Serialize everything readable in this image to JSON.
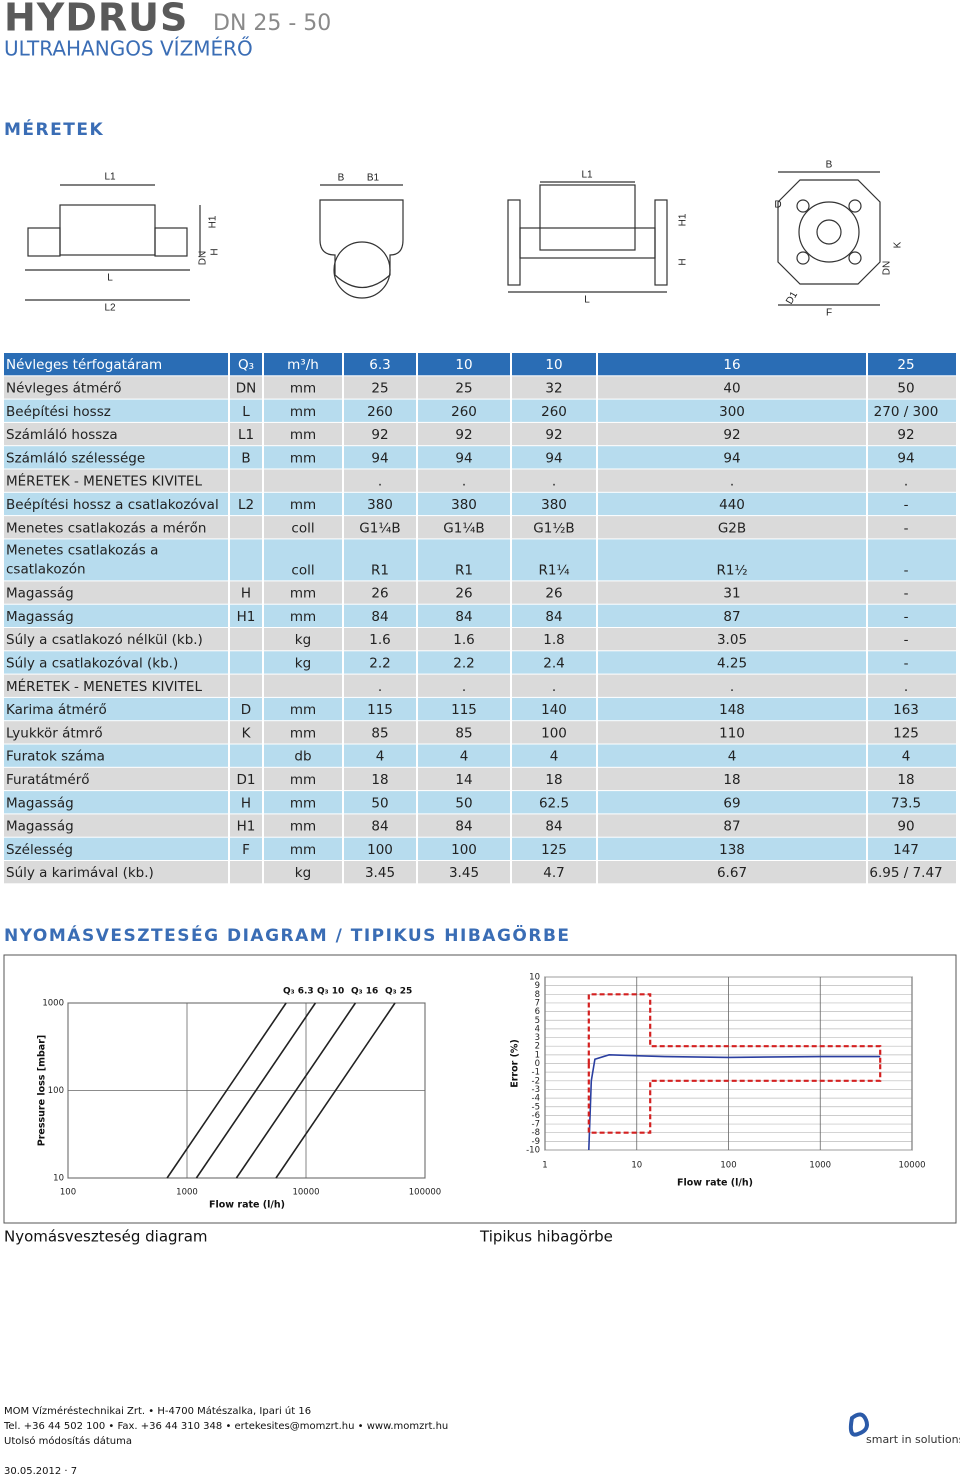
{
  "header": {
    "brand": "HYDRUS",
    "model": "DN 25 - 50",
    "subtitle": "ULTRAHANGOS VÍZMÉRŐ"
  },
  "dimensions": {
    "title": "MÉRETEK",
    "drawing_labels": {
      "meter_side": [
        "L1",
        "H1",
        "DN",
        "H",
        "L",
        "L2"
      ],
      "meter_end": [
        "B",
        "B1"
      ],
      "flanged_side": [
        "L1",
        "H1",
        "H",
        "L"
      ],
      "flange_face": [
        "B",
        "D",
        "K",
        "DN",
        "D1",
        "F"
      ]
    },
    "table": {
      "rows": [
        [
          "Névleges térfogatáram",
          "Q₃",
          "m³/h",
          "6.3",
          "10",
          "10",
          "16",
          "25"
        ],
        [
          "Névleges átmérő",
          "DN",
          "mm",
          "25",
          "25",
          "32",
          "40",
          "50"
        ],
        [
          "Beépítési hossz",
          "L",
          "mm",
          "260",
          "260",
          "260",
          "300",
          "270 / 300"
        ],
        [
          "Számláló hossza",
          "L1",
          "mm",
          "92",
          "92",
          "92",
          "92",
          "92"
        ],
        [
          "Számláló szélessége",
          "B",
          "mm",
          "94",
          "94",
          "94",
          "94",
          "94"
        ],
        [
          "MÉRETEK - MENETES KIVITEL",
          null,
          null,
          ".",
          ".",
          ".",
          ".",
          "."
        ],
        [
          "Beépítési hossz a csatlakozóval",
          "L2",
          "mm",
          "380",
          "380",
          "380",
          "440",
          "-"
        ],
        [
          "Menetes csatlakozás a mérőn",
          null,
          "coll",
          "G1¼B",
          "G1¼B",
          "G1½B",
          "G2B",
          "-"
        ],
        [
          "Menetes csatlakozás a csatlakozón",
          null,
          "coll",
          "R1",
          "R1",
          "R1¼",
          "R1½",
          "-"
        ],
        [
          "Magasság",
          "H",
          "mm",
          "26",
          "26",
          "26",
          "31",
          "-"
        ],
        [
          "Magasság",
          "H1",
          "mm",
          "84",
          "84",
          "84",
          "87",
          "-"
        ],
        [
          "Súly a csatlakozó nélkül (kb.)",
          null,
          "kg",
          "1.6",
          "1.6",
          "1.8",
          "3.05",
          "-"
        ],
        [
          "Súly a csatlakozóval (kb.)",
          null,
          "kg",
          "2.2",
          "2.2",
          "2.4",
          "4.25",
          "-"
        ],
        [
          "MÉRETEK - MENETES KIVITEL",
          null,
          null,
          ".",
          ".",
          ".",
          ".",
          "."
        ],
        [
          "Karima átmérő",
          "D",
          "mm",
          "115",
          "115",
          "140",
          "148",
          "163"
        ],
        [
          "Lyukkör átmrő",
          "K",
          "mm",
          "85",
          "85",
          "100",
          "110",
          "125"
        ],
        [
          "Furatok száma",
          null,
          "db",
          "4",
          "4",
          "4",
          "4",
          "4"
        ],
        [
          "Furatátmérő",
          "D1",
          "mm",
          "18",
          "14",
          "18",
          "18",
          "18"
        ],
        [
          "Magasság",
          "H",
          "mm",
          "50",
          "50",
          "62.5",
          "69",
          "73.5"
        ],
        [
          "Magasság",
          "H1",
          "mm",
          "84",
          "84",
          "84",
          "87",
          "90"
        ],
        [
          "Szélesség",
          "F",
          "mm",
          "100",
          "100",
          "125",
          "138",
          "147"
        ],
        [
          "Súly a karimával (kb.)",
          null,
          "kg",
          "3.45",
          "3.45",
          "4.7",
          "6.67",
          "6.95 / 7.47"
        ]
      ]
    }
  },
  "diagrams": {
    "title": "NYOMÁSVESZTESÉG DIAGRAM / TIPIKUS HIBAGÖRBE",
    "captions": [
      "Nyomásveszteség diagram",
      "Tipikus hibagörbe"
    ]
  },
  "chart_data": [
    {
      "type": "line",
      "y_label": "Pressure loss [mbar]",
      "x_label": "Flow rate (l/h)",
      "log_x": true,
      "log_y": true,
      "grid": true,
      "xlim": [
        100,
        100000
      ],
      "xticks": [
        100,
        1000,
        10000,
        100000
      ],
      "ylim": [
        10,
        1000
      ],
      "yticks": [
        10,
        100,
        1000
      ],
      "series": [
        {
          "name": "Q₃ 6.3",
          "color": "#222222",
          "x": [
            680,
            6800
          ],
          "values": [
            10,
            1000
          ]
        },
        {
          "name": "Q₃ 10",
          "color": "#222222",
          "x": [
            1200,
            12000
          ],
          "values": [
            10,
            1000
          ]
        },
        {
          "name": "Q₃ 16",
          "color": "#222222",
          "x": [
            2600,
            26000
          ],
          "values": [
            10,
            1000
          ]
        },
        {
          "name": "Q₃ 25",
          "color": "#222222",
          "x": [
            5600,
            56000
          ],
          "values": [
            10,
            1000
          ]
        }
      ]
    },
    {
      "type": "line",
      "y_label": "Error (%)",
      "x_label": "Flow rate (l/h)",
      "log_x": true,
      "log_y": false,
      "grid": true,
      "xlim": [
        1,
        10000
      ],
      "xticks": [
        1,
        10,
        100,
        1000,
        10000
      ],
      "ylim": [
        -10,
        10
      ],
      "yticks": [
        10,
        9,
        8,
        7,
        6,
        5,
        4,
        3,
        2,
        1,
        0,
        -1,
        -2,
        -3,
        -4,
        -5,
        -6,
        -7,
        -8,
        -9,
        -10
      ],
      "series": [
        {
          "color": "#2b3fa0",
          "x": [
            3,
            3.2,
            3.5,
            5,
            20,
            100,
            1000,
            4500
          ],
          "values": [
            -10,
            -2,
            0.5,
            1,
            0.8,
            0.7,
            0.8,
            0.8
          ]
        },
        {
          "color": "#d42020",
          "dashed": true,
          "x": [
            3,
            3,
            14,
            14,
            4500,
            4500
          ],
          "values": [
            0,
            8,
            8,
            2,
            2,
            0
          ]
        },
        {
          "color": "#d42020",
          "dashed": true,
          "x": [
            3,
            3,
            14,
            14,
            4500,
            4500
          ],
          "values": [
            0,
            -8,
            -8,
            -2,
            -2,
            0
          ]
        }
      ]
    }
  ],
  "footer": {
    "company": "MOM Vízméréstechnikai Zrt. • H-4700 Mátészalka, Ipari út 16",
    "contact": "Tel. +36 44 502 100 • Fax. +36 44 310 348 • ertekesites@momzrt.hu • www.momzrt.hu",
    "modified_label": "Utolsó módosítás dátuma",
    "date_page": "30.05.2012 · 7",
    "slogan": "smart in solutions"
  }
}
